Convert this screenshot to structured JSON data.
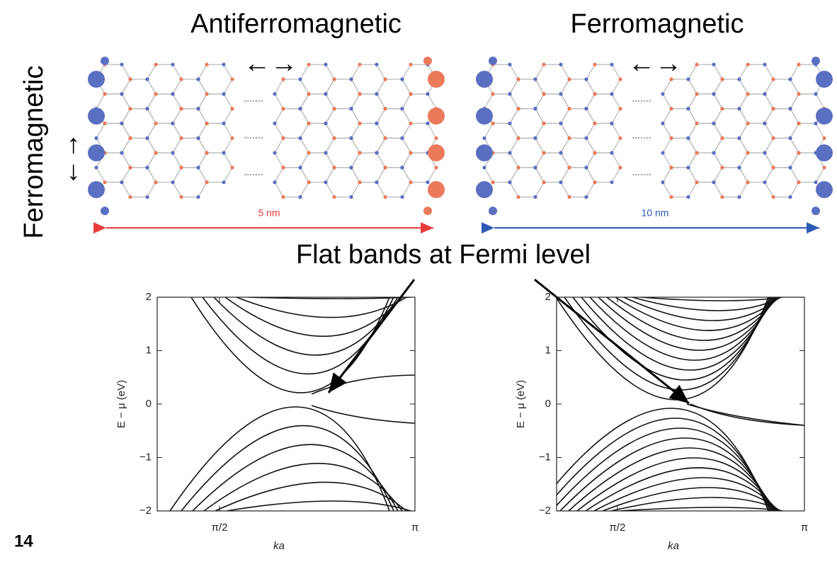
{
  "slide": {
    "label_left": "Antiferromagnetic",
    "label_right": "Ferromagnetic",
    "label_side": "Ferromagnetic",
    "arrow_symbol": "←→",
    "scale_left": "5 nm",
    "scale_right": "10 nm",
    "annotation": "Flat bands at Fermi level",
    "page_number": "14"
  },
  "chart_data": [
    {
      "type": "line",
      "xlabel": "ka",
      "ylabel": "E − μ (eV)",
      "xlim": [
        1.07,
        3.1416
      ],
      "ylim": [
        -2,
        2
      ],
      "xticks": [
        {
          "value": 1.5708,
          "label": "π/2"
        },
        {
          "value": 3.1416,
          "label": "π"
        }
      ],
      "yticks": [
        {
          "value": -2,
          "label": "−2"
        },
        {
          "value": -1,
          "label": "−1"
        },
        0,
        1,
        2
      ]
    },
    {
      "type": "line",
      "xlabel": "ka",
      "ylabel": "E − μ (eV)",
      "xlim": [
        1.06,
        3.1416
      ],
      "ylim": [
        -2,
        2
      ],
      "xticks": [
        {
          "value": 1.5708,
          "label": "π/2"
        },
        {
          "value": 3.1416,
          "label": "π"
        }
      ],
      "yticks": [
        {
          "value": -2,
          "label": "−2"
        },
        {
          "value": -1,
          "label": "−1"
        },
        0,
        1,
        2
      ]
    }
  ]
}
